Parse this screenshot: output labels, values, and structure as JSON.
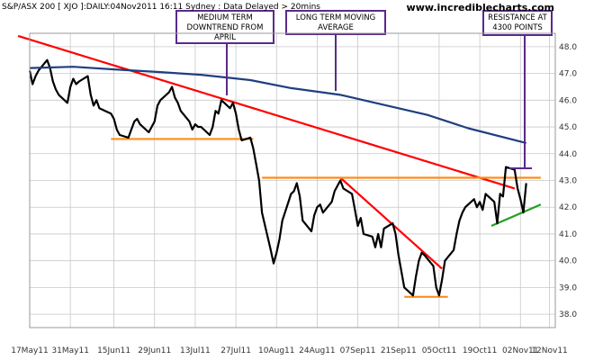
{
  "header": {
    "text": "S&P/ASX 200 [ XJO ]:DAILY:04Nov2011 16:11 Sydney : Data Delayed > 20mins",
    "brand": "www.incrediblecharts.com"
  },
  "colors": {
    "price": "#000000",
    "moving_average": "#1f3f7f",
    "downtrend": "#ff0000",
    "support_resistance": "#ff8c1a",
    "uptrend": "#22a022",
    "annotation": "#5a2a8a",
    "grid": "#c8c8c8"
  },
  "annotations": [
    {
      "lines": [
        "MEDIUM TERM",
        "DOWNTREND FROM",
        "APRIL"
      ]
    },
    {
      "lines": [
        "LONG TERM MOVING",
        "AVERAGE"
      ]
    },
    {
      "lines": [
        "RESISTANCE AT",
        "4300 POINTS"
      ]
    }
  ],
  "chart_data": {
    "type": "line",
    "title": "",
    "xlabel": "",
    "ylabel": "",
    "ylim": [
      37.5,
      48.5
    ],
    "xlim": [
      "2011-05-17",
      "2011-11-14"
    ],
    "grid": true,
    "y_ticks": [
      "38.0",
      "39.0",
      "40.0",
      "41.0",
      "42.0",
      "43.0",
      "44.0",
      "45.0",
      "46.0",
      "47.0",
      "48.0"
    ],
    "x_ticks": [
      "17May11",
      "31May11",
      "15Jun11",
      "29Jun11",
      "13Jul11",
      "27Jul11",
      "10Aug11",
      "24Aug11",
      "07Sep11",
      "21Sep11",
      "05Oct11",
      "19Oct11",
      "02Nov11",
      "12Nov11"
    ],
    "series": [
      {
        "kind": "price",
        "points": [
          [
            "2011-05-17",
            47.1
          ],
          [
            "2011-05-18",
            46.6
          ],
          [
            "2011-05-19",
            46.9
          ],
          [
            "2011-05-20",
            47.1
          ],
          [
            "2011-05-23",
            47.5
          ],
          [
            "2011-05-24",
            47.2
          ],
          [
            "2011-05-25",
            46.7
          ],
          [
            "2011-05-26",
            46.4
          ],
          [
            "2011-05-27",
            46.2
          ],
          [
            "2011-05-30",
            45.9
          ],
          [
            "2011-05-31",
            46.5
          ],
          [
            "2011-06-01",
            46.8
          ],
          [
            "2011-06-02",
            46.6
          ],
          [
            "2011-06-03",
            46.7
          ],
          [
            "2011-06-06",
            46.9
          ],
          [
            "2011-06-07",
            46.2
          ],
          [
            "2011-06-08",
            45.8
          ],
          [
            "2011-06-09",
            46.0
          ],
          [
            "2011-06-10",
            45.7
          ],
          [
            "2011-06-14",
            45.5
          ],
          [
            "2011-06-15",
            45.3
          ],
          [
            "2011-06-16",
            44.9
          ],
          [
            "2011-06-17",
            44.7
          ],
          [
            "2011-06-20",
            44.6
          ],
          [
            "2011-06-21",
            44.9
          ],
          [
            "2011-06-22",
            45.2
          ],
          [
            "2011-06-23",
            45.3
          ],
          [
            "2011-06-24",
            45.1
          ],
          [
            "2011-06-27",
            44.8
          ],
          [
            "2011-06-28",
            45.0
          ],
          [
            "2011-06-29",
            45.2
          ],
          [
            "2011-06-30",
            45.8
          ],
          [
            "2011-07-01",
            46.0
          ],
          [
            "2011-07-04",
            46.3
          ],
          [
            "2011-07-05",
            46.5
          ],
          [
            "2011-07-06",
            46.1
          ],
          [
            "2011-07-07",
            45.9
          ],
          [
            "2011-07-08",
            45.6
          ],
          [
            "2011-07-11",
            45.2
          ],
          [
            "2011-07-12",
            44.9
          ],
          [
            "2011-07-13",
            45.1
          ],
          [
            "2011-07-14",
            45.0
          ],
          [
            "2011-07-15",
            45.0
          ],
          [
            "2011-07-18",
            44.7
          ],
          [
            "2011-07-19",
            45.0
          ],
          [
            "2011-07-20",
            45.6
          ],
          [
            "2011-07-21",
            45.5
          ],
          [
            "2011-07-22",
            46.0
          ],
          [
            "2011-07-25",
            45.7
          ],
          [
            "2011-07-26",
            45.9
          ],
          [
            "2011-07-27",
            45.5
          ],
          [
            "2011-07-28",
            44.9
          ],
          [
            "2011-07-29",
            44.5
          ],
          [
            "2011-08-01",
            44.6
          ],
          [
            "2011-08-02",
            44.2
          ],
          [
            "2011-08-03",
            43.6
          ],
          [
            "2011-08-04",
            43.0
          ],
          [
            "2011-08-05",
            41.8
          ],
          [
            "2011-08-08",
            40.4
          ],
          [
            "2011-08-09",
            39.9
          ],
          [
            "2011-08-10",
            40.3
          ],
          [
            "2011-08-11",
            40.8
          ],
          [
            "2011-08-12",
            41.5
          ],
          [
            "2011-08-15",
            42.5
          ],
          [
            "2011-08-16",
            42.6
          ],
          [
            "2011-08-17",
            42.9
          ],
          [
            "2011-08-18",
            42.4
          ],
          [
            "2011-08-19",
            41.5
          ],
          [
            "2011-08-22",
            41.1
          ],
          [
            "2011-08-23",
            41.7
          ],
          [
            "2011-08-24",
            42.0
          ],
          [
            "2011-08-25",
            42.1
          ],
          [
            "2011-08-26",
            41.8
          ],
          [
            "2011-08-29",
            42.2
          ],
          [
            "2011-08-30",
            42.6
          ],
          [
            "2011-08-31",
            42.8
          ],
          [
            "2011-09-01",
            43.0
          ],
          [
            "2011-09-02",
            42.7
          ],
          [
            "2011-09-05",
            42.5
          ],
          [
            "2011-09-06",
            41.9
          ],
          [
            "2011-09-07",
            41.3
          ],
          [
            "2011-09-08",
            41.6
          ],
          [
            "2011-09-09",
            41.0
          ],
          [
            "2011-09-12",
            40.9
          ],
          [
            "2011-09-13",
            40.5
          ],
          [
            "2011-09-14",
            41.0
          ],
          [
            "2011-09-15",
            40.5
          ],
          [
            "2011-09-16",
            41.2
          ],
          [
            "2011-09-19",
            41.4
          ],
          [
            "2011-09-20",
            41.0
          ],
          [
            "2011-09-21",
            40.2
          ],
          [
            "2011-09-22",
            39.6
          ],
          [
            "2011-09-23",
            39.0
          ],
          [
            "2011-09-26",
            38.7
          ],
          [
            "2011-09-27",
            39.4
          ],
          [
            "2011-09-28",
            40.0
          ],
          [
            "2011-09-29",
            40.3
          ],
          [
            "2011-09-30",
            40.2
          ],
          [
            "2011-10-03",
            39.8
          ],
          [
            "2011-10-04",
            39.0
          ],
          [
            "2011-10-05",
            38.7
          ],
          [
            "2011-10-06",
            39.3
          ],
          [
            "2011-10-07",
            40.0
          ],
          [
            "2011-10-10",
            40.4
          ],
          [
            "2011-10-11",
            41.0
          ],
          [
            "2011-10-12",
            41.5
          ],
          [
            "2011-10-13",
            41.8
          ],
          [
            "2011-10-14",
            42.0
          ],
          [
            "2011-10-17",
            42.3
          ],
          [
            "2011-10-18",
            42.0
          ],
          [
            "2011-10-19",
            42.2
          ],
          [
            "2011-10-20",
            41.9
          ],
          [
            "2011-10-21",
            42.5
          ],
          [
            "2011-10-24",
            42.2
          ],
          [
            "2011-10-25",
            41.4
          ],
          [
            "2011-10-26",
            42.5
          ],
          [
            "2011-10-27",
            42.4
          ],
          [
            "2011-10-28",
            43.5
          ],
          [
            "2011-10-31",
            43.4
          ],
          [
            "2011-11-01",
            42.7
          ],
          [
            "2011-11-02",
            42.3
          ],
          [
            "2011-11-03",
            41.8
          ],
          [
            "2011-11-04",
            42.9
          ]
        ]
      },
      {
        "kind": "moving_average",
        "points": [
          [
            "2011-05-17",
            47.2
          ],
          [
            "2011-06-01",
            47.25
          ],
          [
            "2011-06-15",
            47.15
          ],
          [
            "2011-07-01",
            47.05
          ],
          [
            "2011-07-15",
            46.95
          ],
          [
            "2011-08-01",
            46.75
          ],
          [
            "2011-08-15",
            46.45
          ],
          [
            "2011-09-01",
            46.2
          ],
          [
            "2011-09-15",
            45.85
          ],
          [
            "2011-10-01",
            45.45
          ],
          [
            "2011-10-15",
            44.95
          ],
          [
            "2011-11-04",
            44.4
          ]
        ]
      }
    ],
    "trendlines": [
      {
        "kind": "downtrend",
        "points": [
          [
            "2011-05-13",
            48.4
          ],
          [
            "2011-10-31",
            42.7
          ]
        ]
      },
      {
        "kind": "downtrend",
        "points": [
          [
            "2011-09-01",
            43.1
          ],
          [
            "2011-10-06",
            39.7
          ]
        ]
      },
      {
        "kind": "support",
        "points": [
          [
            "2011-06-14",
            44.55
          ],
          [
            "2011-08-02",
            44.55
          ]
        ]
      },
      {
        "kind": "resistance",
        "points": [
          [
            "2011-08-05",
            43.1
          ],
          [
            "2011-11-09",
            43.1
          ]
        ]
      },
      {
        "kind": "support",
        "points": [
          [
            "2011-09-23",
            38.65
          ],
          [
            "2011-10-08",
            38.65
          ]
        ]
      },
      {
        "kind": "uptrend",
        "points": [
          [
            "2011-10-23",
            41.3
          ],
          [
            "2011-11-09",
            42.1
          ]
        ]
      }
    ]
  }
}
